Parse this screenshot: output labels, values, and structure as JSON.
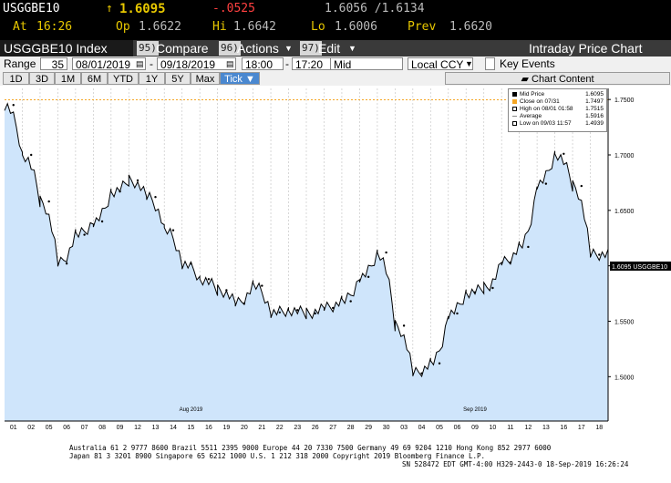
{
  "quote": {
    "ticker": "USGGBE10",
    "arrow": "↑",
    "last": "1.6095",
    "change": "-.0525",
    "bid_ask": "1.6056 /1.6134",
    "at_label": "At",
    "time": "16:26",
    "op_label": "Op",
    "open": "1.6622",
    "hi_label": "Hi",
    "high": "1.6642",
    "lo_label": "Lo",
    "low": "1.6006",
    "prev_label": "Prev",
    "prev": "1.6620"
  },
  "toolbar": {
    "security": "USGGBE10 Index",
    "compare_num": "95)",
    "compare_label": "Compare",
    "actions_num": "96)",
    "actions_label": "Actions",
    "edit_num": "97)",
    "edit_label": "Edit",
    "chart_title": "Intraday Price Chart"
  },
  "range": {
    "range_label": "Range",
    "days": "35",
    "start_date": "08/01/2019",
    "end_date": "09/18/2019",
    "start_time": "18:00",
    "end_time": "17:20",
    "field": "Mid",
    "currency": "Local CCY",
    "key_events_label": "Key Events"
  },
  "tabs": [
    "1D",
    "3D",
    "1M",
    "6M",
    "YTD",
    "1Y",
    "5Y",
    "Max",
    "Tick ▼"
  ],
  "chart_content_label": "Chart Content",
  "colors": {
    "up": "#e8c800",
    "down": "#ff4040",
    "orange": "#f5a623",
    "area": "#cfe5fb",
    "line": "#000000",
    "active_tab": "#4a88d0"
  },
  "legend": {
    "items": [
      {
        "label": "Mid Price",
        "value": "1.6095",
        "swatch": "#000000"
      },
      {
        "label": "Close on 07/31",
        "value": "1.7497",
        "swatch": "#f5a623"
      },
      {
        "label": "High on 08/01 01:58",
        "value": "1.7515",
        "swatch": "#000000"
      },
      {
        "label": "Average",
        "value": "1.5916",
        "swatch": "#000000"
      },
      {
        "label": "Low on 09/03 11:57",
        "value": "1.4939",
        "swatch": "#000000"
      }
    ]
  },
  "price_tag": "1.6095 USGGBE10",
  "chart_data": {
    "type": "area",
    "ylim": [
      1.46,
      1.76
    ],
    "yticks": [
      "1.7500",
      "1.7000",
      "1.6500",
      "1.6000",
      "1.5500",
      "1.5000"
    ],
    "reference_line": {
      "label": "Close on 07/31",
      "value": 1.7497
    },
    "x": [
      "01",
      "02",
      "05",
      "06",
      "07",
      "08",
      "09",
      "12",
      "13",
      "14",
      "15",
      "16",
      "19",
      "20",
      "21",
      "22",
      "23",
      "26",
      "27",
      "28",
      "29",
      "30",
      "03",
      "04",
      "05",
      "06",
      "09",
      "10",
      "11",
      "12",
      "13",
      "16",
      "17",
      "18"
    ],
    "month_labels": [
      {
        "label": "Aug 2019",
        "index": 10
      },
      {
        "label": "Sep 2019",
        "index": 26
      }
    ],
    "series": [
      {
        "values": [
          1.745,
          1.7,
          1.658,
          1.602,
          1.628,
          1.64,
          1.667,
          1.677,
          1.662,
          1.632,
          1.602,
          1.588,
          1.578,
          1.566,
          1.582,
          1.558,
          1.56,
          1.557,
          1.562,
          1.568,
          1.59,
          1.612,
          1.546,
          1.503,
          1.512,
          1.557,
          1.576,
          1.58,
          1.603,
          1.617,
          1.674,
          1.701,
          1.672,
          1.61
        ]
      }
    ]
  },
  "footer": {
    "line1": "Australia 61 2 9777 8600 Brazil 5511 2395 9000 Europe 44 20 7330 7500 Germany 49 69 9204 1210 Hong Kong 852 2977 6000",
    "line2": "Japan 81 3 3201 8900        Singapore 65 6212 1000        U.S. 1 212 318 2000         Copyright 2019 Bloomberg Finance L.P.",
    "line3": "SN 528472 EDT  GMT-4:00 H329-2443-0 18-Sep-2019 16:26:24"
  }
}
